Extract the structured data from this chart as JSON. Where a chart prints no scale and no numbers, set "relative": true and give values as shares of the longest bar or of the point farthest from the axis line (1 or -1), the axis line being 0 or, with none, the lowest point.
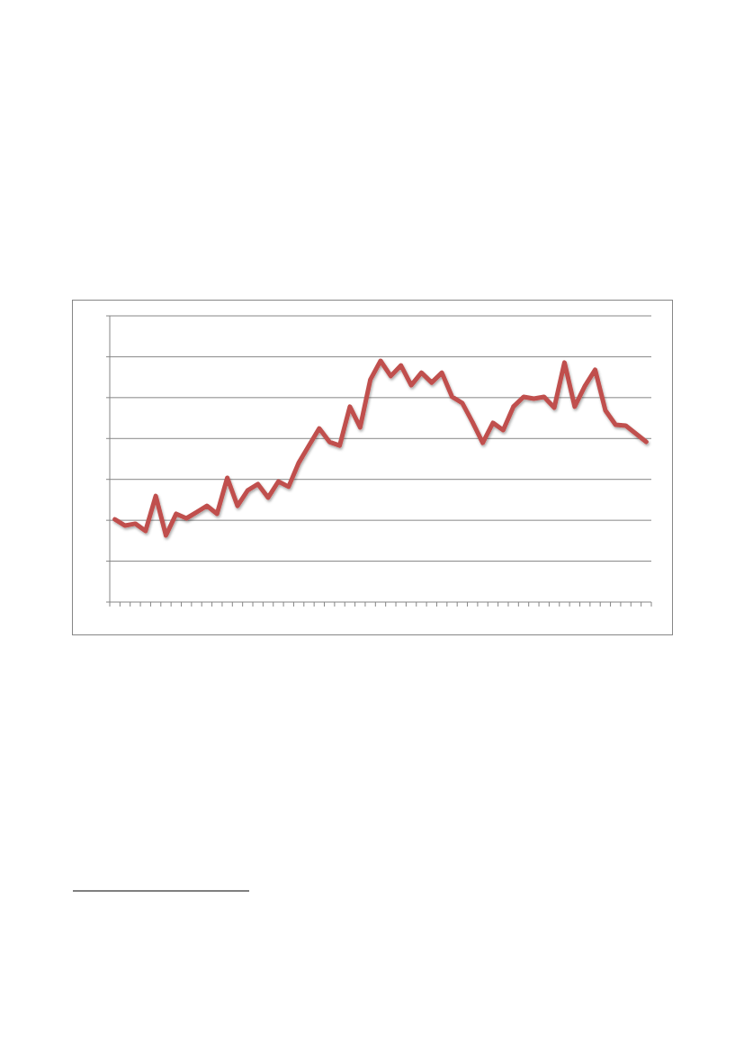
{
  "chart_data": {
    "type": "line",
    "relative": true,
    "grid": "y",
    "categories": [
      null,
      null,
      null,
      null,
      null,
      null,
      null,
      null,
      null,
      null,
      null,
      null,
      null,
      null,
      null,
      null,
      null,
      null,
      null,
      null,
      null,
      null,
      null,
      null,
      null,
      null,
      null,
      null,
      null,
      null,
      null,
      null,
      null,
      null,
      null,
      null,
      null,
      null,
      null,
      null,
      null,
      null,
      null,
      null,
      null,
      null,
      null,
      null,
      null,
      null,
      null,
      null,
      null
    ],
    "series": [
      {
        "color": "#c0504d",
        "values": [
          0.343,
          0.317,
          0.325,
          0.295,
          0.44,
          0.276,
          0.366,
          0.347,
          0.373,
          0.399,
          0.366,
          0.515,
          0.399,
          0.463,
          0.489,
          0.433,
          0.5,
          0.478,
          0.578,
          0.649,
          0.72,
          0.664,
          0.649,
          0.81,
          0.724,
          0.922,
          1,
          0.937,
          0.981,
          0.899,
          0.951,
          0.91,
          0.951,
          0.851,
          0.825,
          0.746,
          0.66,
          0.743,
          0.713,
          0.81,
          0.851,
          0.843,
          0.851,
          0.806,
          0.993,
          0.81,
          0.896,
          0.963,
          0.795,
          0.735,
          0.731,
          0.698,
          0.664
        ]
      }
    ]
  }
}
